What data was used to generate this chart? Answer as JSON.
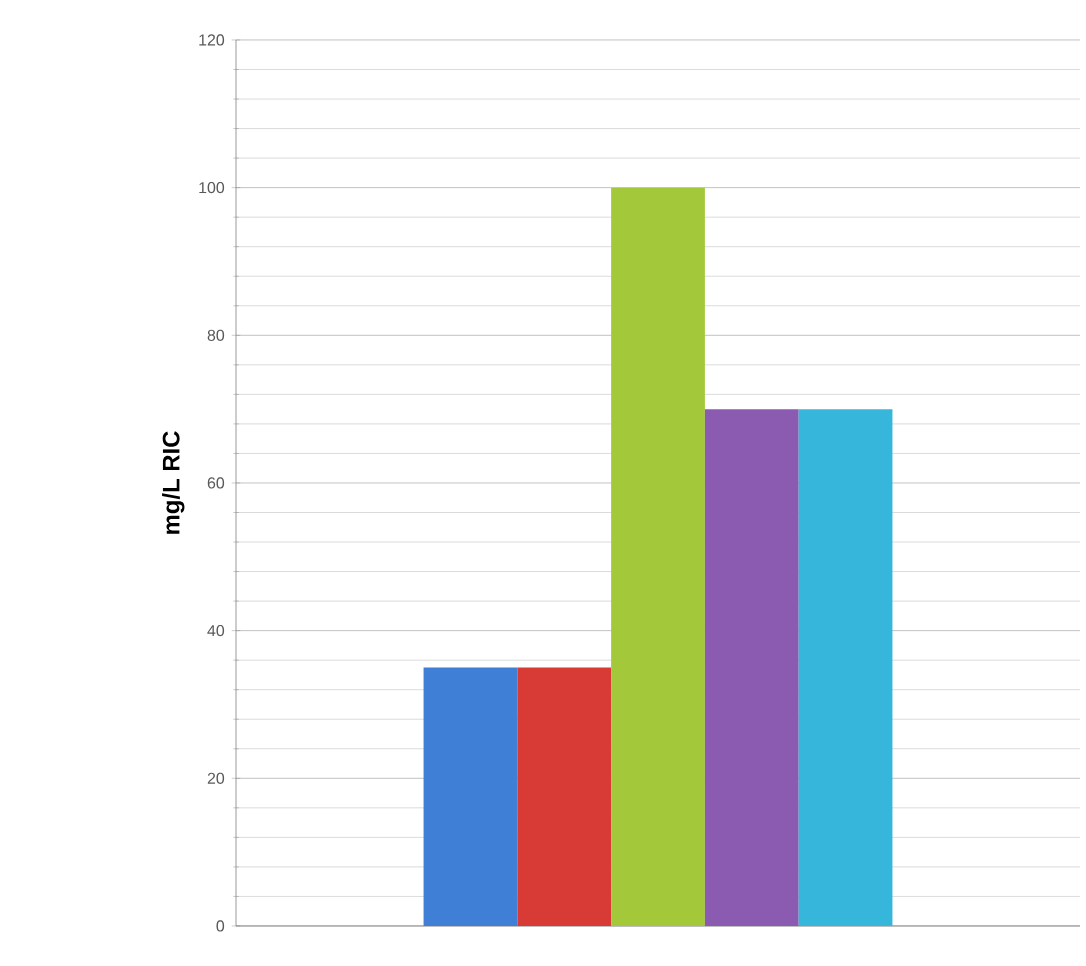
{
  "chart_data": {
    "type": "bar",
    "ylabel": "mg/L RIC",
    "categories": [
      null,
      null,
      null,
      null,
      null,
      null,
      null,
      null,
      null
    ],
    "values": [
      null,
      null,
      35,
      35,
      100,
      70,
      70,
      null,
      null
    ],
    "colors": [
      "#ffffff",
      "#ffffff",
      "#3f7fd6",
      "#d83a35",
      "#a3c93a",
      "#8a5bb0",
      "#37b6db",
      "#ffffff",
      "#ffffff"
    ],
    "ylim": [
      0,
      120
    ],
    "yticks": [
      0,
      20,
      40,
      60,
      80,
      100,
      120
    ],
    "grid": "y",
    "tick_labels": "y"
  }
}
